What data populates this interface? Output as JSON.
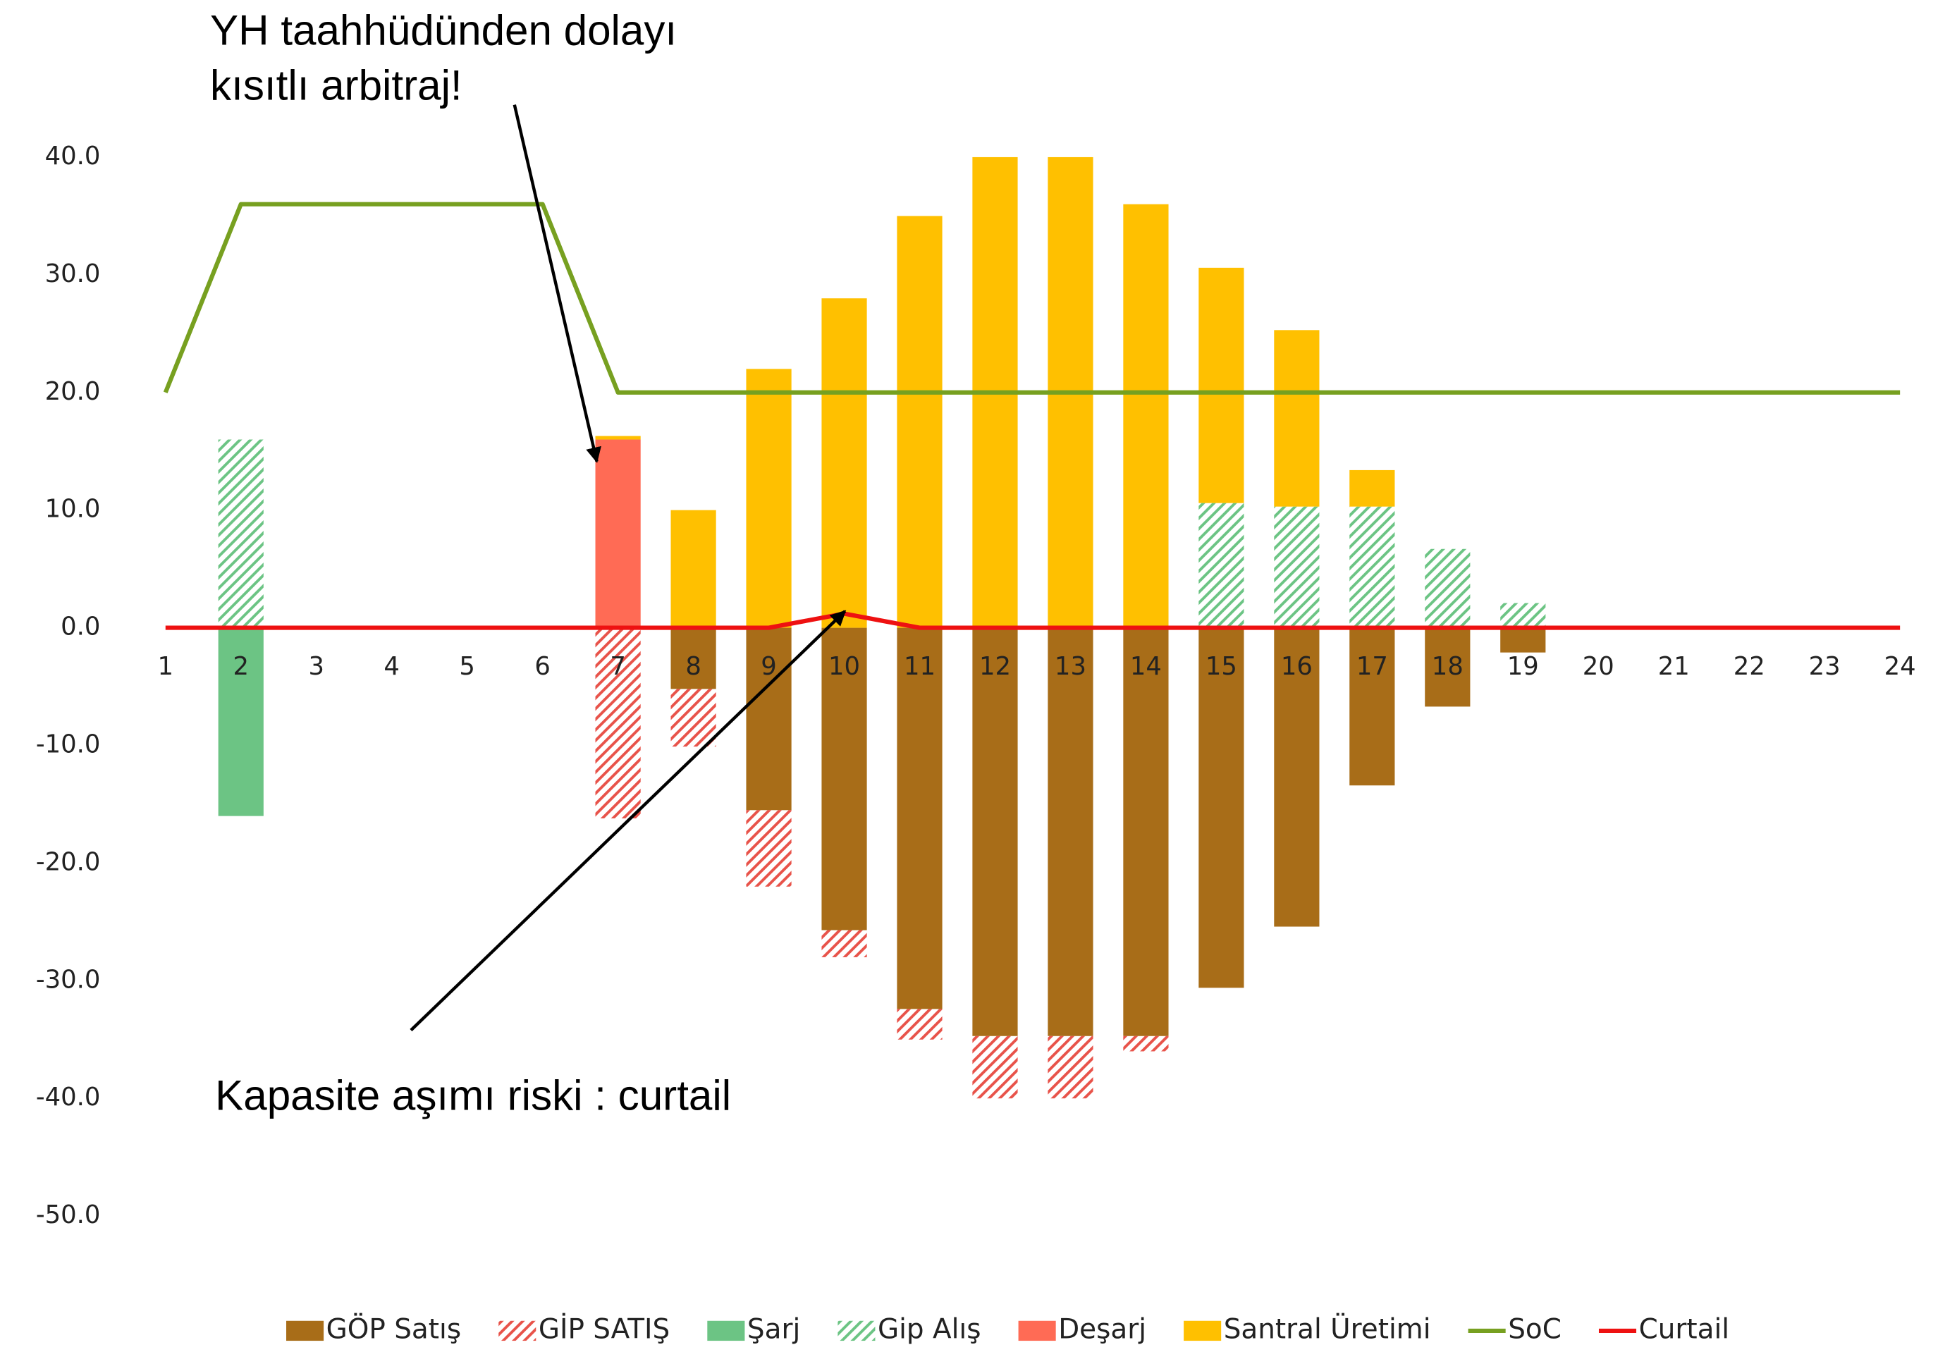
{
  "chart_data": {
    "type": "bar",
    "stacked": true,
    "categories": [
      "1",
      "2",
      "3",
      "4",
      "5",
      "6",
      "7",
      "8",
      "9",
      "10",
      "11",
      "12",
      "13",
      "14",
      "15",
      "16",
      "17",
      "18",
      "19",
      "20",
      "21",
      "22",
      "23",
      "24"
    ],
    "series": [
      {
        "name": "GÖP Satış",
        "color": "#a86d18",
        "values": [
          0,
          0,
          0,
          0,
          0,
          0,
          0,
          -5.2,
          -15.5,
          -25.7,
          -32.4,
          -34.7,
          -34.7,
          -34.7,
          -30.6,
          -25.4,
          -13.4,
          -6.7,
          -2.1,
          0,
          0,
          0,
          0,
          0
        ]
      },
      {
        "name": "GİP SATIŞ",
        "color": "#e8534a",
        "hatch": true,
        "values": [
          0,
          0,
          0,
          0,
          0,
          0,
          -16.2,
          -4.9,
          -6.5,
          -2.3,
          -2.6,
          -5.3,
          -5.3,
          -1.3,
          0,
          0,
          0,
          0,
          0,
          0,
          0,
          0,
          0,
          0
        ]
      },
      {
        "name": "Şarj",
        "color": "#6cc484",
        "values": [
          0,
          -16,
          0,
          0,
          0,
          0,
          0,
          0,
          0,
          0,
          0,
          0,
          0,
          0,
          0,
          0,
          0,
          0,
          0,
          0,
          0,
          0,
          0,
          0
        ]
      },
      {
        "name": "Gip Alış",
        "color": "#6cc484",
        "hatch": true,
        "values": [
          0,
          16,
          0,
          0,
          0,
          0,
          0,
          0,
          0,
          0,
          0,
          0,
          0,
          0,
          10.6,
          10.3,
          10.3,
          6.7,
          2.1,
          0,
          0,
          0,
          0,
          0
        ]
      },
      {
        "name": "Deşarj",
        "color": "#ff6b55",
        "values": [
          0,
          0,
          0,
          0,
          0,
          0,
          16,
          0,
          0,
          0,
          0,
          0,
          0,
          0,
          0,
          0,
          0,
          0,
          0,
          0,
          0,
          0,
          0,
          0
        ]
      },
      {
        "name": "Santral Üretimi",
        "color": "#ffc000",
        "values": [
          0,
          0,
          0,
          0,
          0,
          0,
          0.3,
          10,
          22,
          28,
          35,
          40,
          40,
          36,
          20,
          15,
          3.1,
          0,
          0,
          0,
          0,
          0,
          0,
          0
        ]
      },
      {
        "name": "SoC",
        "type": "line",
        "color": "#77a020",
        "values": [
          20,
          36,
          36,
          36,
          36,
          36,
          20,
          20,
          20,
          20,
          20,
          20,
          20,
          20,
          20,
          20,
          20,
          20,
          20,
          20,
          20,
          20,
          20,
          20
        ]
      },
      {
        "name": "Curtail",
        "type": "line",
        "color": "#ee1111",
        "values": [
          0,
          0,
          0,
          0,
          0,
          0,
          0,
          0,
          0,
          1.2,
          0,
          0,
          0,
          0,
          0,
          0,
          0,
          0,
          0,
          0,
          0,
          0,
          0,
          0
        ]
      }
    ],
    "ylim": [
      -50,
      40
    ],
    "yticks": [
      {
        "value": -50,
        "label": "-50.0"
      },
      {
        "value": -40,
        "label": "-40.0"
      },
      {
        "value": -30,
        "label": "-30.0"
      },
      {
        "value": -20,
        "label": "-20.0"
      },
      {
        "value": -10,
        "label": "-10.0"
      },
      {
        "value": 0,
        "label": "0.0"
      },
      {
        "value": 10,
        "label": "10.0"
      },
      {
        "value": 20,
        "label": "20.0"
      },
      {
        "value": 30,
        "label": "30.0"
      },
      {
        "value": 40,
        "label": "40.0"
      }
    ],
    "grid": true,
    "legend": "bottom",
    "annotations": [
      {
        "lines": [
          "YH taahhüdünden dolayı",
          "kısıtlı arbitraj!"
        ]
      },
      {
        "text": "Kapasite aşımı riski : curtail"
      }
    ]
  }
}
